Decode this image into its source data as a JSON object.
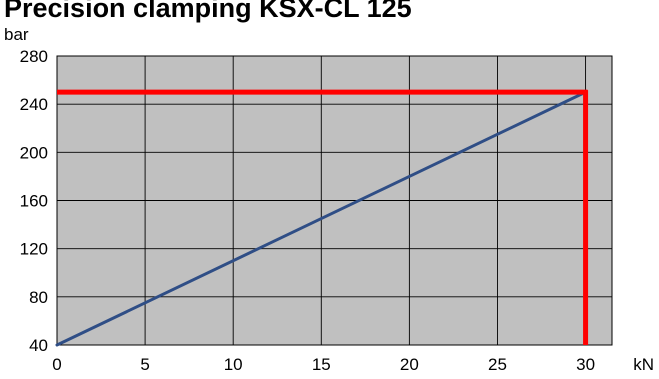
{
  "chart_data": {
    "type": "line",
    "title": "Precision clamping KSX-CL 125",
    "xlabel": "kN",
    "ylabel": "bar",
    "xlim": [
      0,
      31.5
    ],
    "ylim": [
      40,
      280
    ],
    "x_ticks": [
      0,
      5,
      10,
      15,
      20,
      25,
      30
    ],
    "y_ticks": [
      40,
      80,
      120,
      160,
      200,
      240,
      280
    ],
    "x_tick_labels": [
      "0",
      "5",
      "10",
      "15",
      "20",
      "25",
      "30"
    ],
    "y_tick_labels": [
      "40",
      "80",
      "120",
      "160",
      "200",
      "240",
      "280"
    ],
    "grid": true,
    "plot_background": "#c0c0c0",
    "series": [
      {
        "color": "#2f4e86",
        "x": [
          0,
          30
        ],
        "y": [
          40,
          250
        ]
      }
    ],
    "reference_lines": {
      "color": "#ff0000",
      "horizontal": {
        "y": 250,
        "x_from": 0,
        "x_to": 30
      },
      "vertical": {
        "x": 30,
        "y_from": 40,
        "y_to": 250
      }
    }
  }
}
